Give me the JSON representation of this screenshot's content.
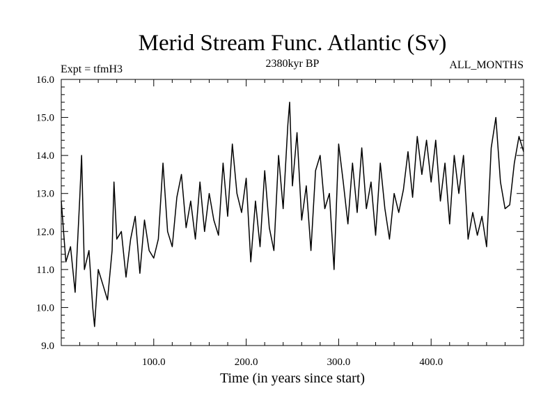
{
  "chart_data": {
    "type": "line",
    "title": "Merid Stream Func. Atlantic (Sv)",
    "subtitle": "2380kyr BP",
    "left_label": "Expt = tfmH3",
    "right_label": "ALL_MONTHS",
    "xlabel": "Time (in years since start)",
    "ylabel": "",
    "xlim": [
      0,
      500
    ],
    "ylim": [
      9.0,
      16.0
    ],
    "x_ticks": [
      100,
      200,
      300,
      400
    ],
    "x_tick_labels": [
      "100.0",
      "200.0",
      "300.0",
      "400.0"
    ],
    "y_ticks": [
      9,
      10,
      11,
      12,
      13,
      14,
      15,
      16
    ],
    "y_tick_labels": [
      "9.0",
      "10.0",
      "11.0",
      "12.0",
      "13.0",
      "14.0",
      "15.0",
      "16.0"
    ],
    "grid": false,
    "series": [
      {
        "name": "Merid Stream Func. Atlantic",
        "x": [
          0,
          5,
          10,
          15,
          20,
          22,
          25,
          30,
          34,
          36,
          40,
          45,
          50,
          55,
          57,
          60,
          65,
          70,
          75,
          80,
          85,
          90,
          95,
          100,
          105,
          110,
          115,
          120,
          125,
          130,
          135,
          140,
          145,
          150,
          155,
          160,
          165,
          170,
          175,
          180,
          185,
          190,
          195,
          200,
          205,
          210,
          215,
          220,
          225,
          230,
          235,
          240,
          245,
          247,
          250,
          255,
          260,
          265,
          270,
          275,
          280,
          285,
          290,
          295,
          300,
          305,
          310,
          315,
          320,
          325,
          330,
          335,
          340,
          345,
          350,
          355,
          360,
          365,
          370,
          375,
          380,
          385,
          390,
          395,
          400,
          405,
          410,
          415,
          420,
          425,
          430,
          435,
          440,
          445,
          450,
          455,
          460,
          465,
          470,
          475,
          480,
          485,
          490,
          495,
          500
        ],
        "y": [
          12.8,
          11.2,
          11.6,
          10.4,
          12.9,
          14.0,
          11.0,
          11.5,
          10.0,
          9.5,
          11.0,
          10.6,
          10.2,
          11.5,
          13.3,
          11.8,
          12.0,
          10.8,
          11.8,
          12.4,
          10.9,
          12.3,
          11.5,
          11.3,
          11.8,
          13.8,
          12.0,
          11.6,
          12.9,
          13.5,
          12.1,
          12.8,
          11.8,
          13.3,
          12.0,
          13.0,
          12.3,
          11.9,
          13.8,
          12.4,
          14.3,
          13.0,
          12.5,
          13.4,
          11.2,
          12.8,
          11.6,
          13.6,
          12.1,
          11.5,
          14.0,
          12.6,
          14.8,
          15.4,
          13.2,
          14.6,
          12.3,
          13.2,
          11.5,
          13.6,
          14.0,
          12.6,
          13.0,
          11.0,
          14.3,
          13.3,
          12.2,
          13.8,
          12.5,
          14.2,
          12.6,
          13.3,
          11.9,
          13.8,
          12.6,
          11.8,
          13.0,
          12.5,
          13.1,
          14.1,
          12.9,
          14.5,
          13.5,
          14.4,
          13.3,
          14.4,
          12.8,
          13.8,
          12.2,
          14.0,
          13.0,
          14.0,
          11.8,
          12.5,
          11.9,
          12.4,
          11.6,
          14.2,
          15.0,
          13.3,
          12.6,
          12.7,
          13.8,
          14.5,
          14.1
        ]
      }
    ]
  }
}
